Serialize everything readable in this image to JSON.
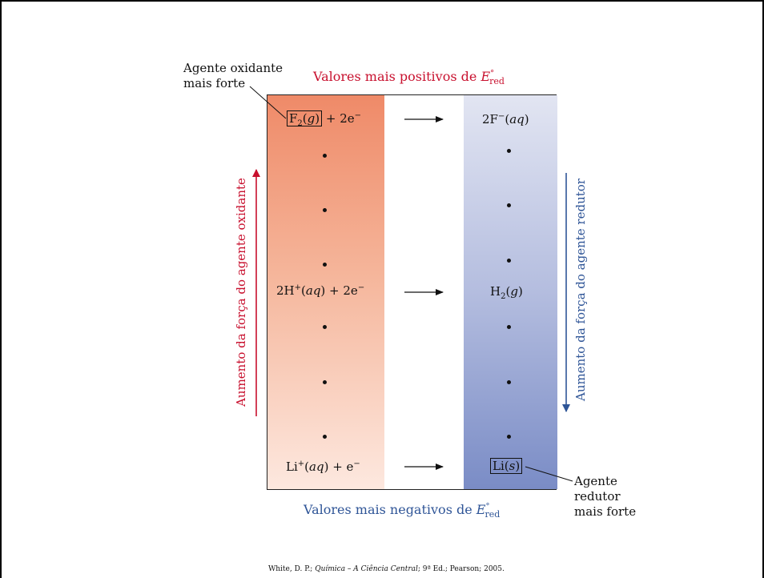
{
  "labels": {
    "top_title": "Valores mais positivos de ",
    "bottom_title": "Valores mais negativos de ",
    "e_symbol": "E",
    "e_degree": "°",
    "e_sub": "red",
    "left_axis": "Aumento da força do agente oxidante",
    "right_axis": "Aumento da força do agente redutor",
    "callout_top_1": "Agente oxidante",
    "callout_top_2": "mais forte",
    "callout_bottom_1": "Agente",
    "callout_bottom_2": "redutor",
    "callout_bottom_3": "mais forte"
  },
  "reactions": {
    "f2_oxidant_symbol": "F",
    "f2_oxidant_sub": "2",
    "f2_oxidant_state": "g",
    "f2_oxidant_rest": " + 2e",
    "f2_oxidant_charge": "−",
    "f2_product_main": "2F",
    "f2_product_charge": "−",
    "f2_product_state": "aq",
    "h_oxidant_main": "2H",
    "h_oxidant_charge": "+",
    "h_oxidant_state": "aq",
    "h_oxidant_rest": " + 2e",
    "h_oxidant_e_charge": "−",
    "h_product_symbol": "H",
    "h_product_sub": "2",
    "h_product_state": "g",
    "li_oxidant_main": "Li",
    "li_oxidant_charge": "+",
    "li_oxidant_state": "aq",
    "li_oxidant_rest": " + e",
    "li_oxidant_e_charge": "−",
    "li_product_main": "Li",
    "li_product_state": "s"
  },
  "citation": {
    "prefix": "White, D. P.; ",
    "title": "Química – A Ciência Central",
    "suffix": "; 9ª Ed.; Pearson; 2005."
  },
  "colors": {
    "oxidant_accent": "#c8102e",
    "reductant_accent": "#2f5597"
  }
}
